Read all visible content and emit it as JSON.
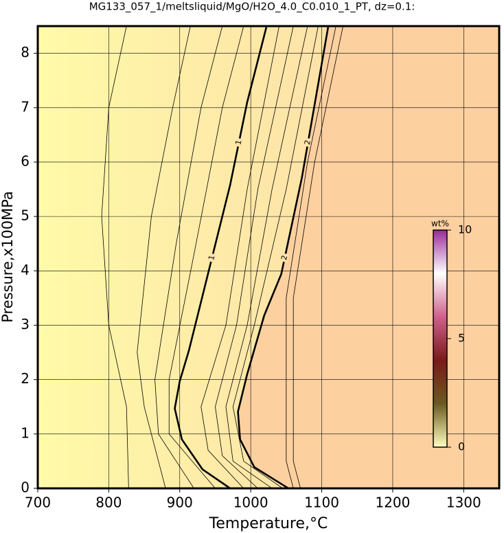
{
  "chart_data": {
    "type": "contour",
    "title": "MG133_057_1/meltsliquid/MgO/H2O_4.0_C0.010_1_PT, dz=0.1:",
    "x_label": "Temperature,°C",
    "y_label": "Pressure,x100MPa",
    "xlim": [
      700,
      1350
    ],
    "xticks": [
      700,
      800,
      900,
      1000,
      1100,
      1200,
      1300
    ],
    "ylim": [
      0,
      8.5
    ],
    "yticks": [
      0,
      1,
      2,
      3,
      4,
      5,
      6,
      7,
      8
    ],
    "grid": true,
    "contours": [
      {
        "level": 0.2,
        "x": [
          828,
          825,
          800,
          790,
          800,
          825
        ],
        "y": [
          0,
          1.5,
          3,
          5,
          7,
          8.5
        ]
      },
      {
        "level": 0.4,
        "x": [
          880,
          850,
          840,
          860,
          890,
          915
        ],
        "y": [
          0,
          1.5,
          2.5,
          5,
          7,
          8.5
        ]
      },
      {
        "level": 0.6,
        "x": [
          920,
          870,
          865,
          895,
          930,
          960
        ],
        "y": [
          0,
          1,
          2,
          4.5,
          7,
          8.5
        ]
      },
      {
        "level": 0.8,
        "x": [
          950,
          885,
          885,
          920,
          960,
          990
        ],
        "y": [
          0,
          1,
          2,
          4.3,
          7,
          8.5
        ]
      },
      {
        "level": 1,
        "labeled": true,
        "x": [
          971,
          932,
          903,
          893,
          900,
          913,
          942,
          971,
          995,
          1022
        ],
        "y": [
          0,
          0.35,
          0.9,
          1.47,
          1.97,
          2.54,
          4.06,
          5.58,
          7.1,
          8.48
        ]
      },
      {
        "level": 1.2,
        "x": [
          990,
          940,
          930,
          965,
          995,
          1040
        ],
        "y": [
          0,
          0.7,
          1.5,
          3,
          5.5,
          8.5
        ]
      },
      {
        "level": 1.4,
        "x": [
          1010,
          960,
          950,
          980,
          1010,
          1060
        ],
        "y": [
          0,
          0.6,
          1.5,
          3,
          5.5,
          8.5
        ]
      },
      {
        "level": 1.6,
        "x": [
          1030,
          975,
          965,
          995,
          1030,
          1080
        ],
        "y": [
          0,
          0.5,
          1.5,
          3,
          5.5,
          8.5
        ]
      },
      {
        "level": 1.8,
        "x": [
          1045,
          990,
          975,
          1005,
          1050,
          1095
        ],
        "y": [
          0,
          0.5,
          1.5,
          3,
          5.5,
          8.5
        ]
      },
      {
        "level": 2,
        "labeled": true,
        "x": [
          1053,
          1005,
          985,
          982,
          995,
          1019,
          1043,
          1072,
          1109
        ],
        "y": [
          0,
          0.39,
          0.9,
          1.41,
          2.1,
          3.18,
          3.94,
          5.71,
          8.48
        ]
      },
      {
        "level": 2.2,
        "x": [
          1060,
          1050,
          1050,
          1080,
          1120
        ],
        "y": [
          0,
          0.5,
          3.5,
          6,
          8.5
        ]
      },
      {
        "level": 2.4,
        "x": [
          1070,
          1060,
          1060,
          1090,
          1130
        ],
        "y": [
          0,
          0.5,
          3.5,
          6,
          8.5
        ]
      }
    ],
    "low_color": "#fffaa8",
    "mid_color": "#fde2a8",
    "high_color": "#fdd0a0",
    "colorbar": {
      "label": "wt%",
      "clim": [
        0,
        10
      ],
      "cticks": [
        0,
        5,
        10
      ],
      "colors": [
        "#ffffc0",
        "#6b5a20",
        "#7a1a1a",
        "#d0608a",
        "#ffffff",
        "#9a2a9a"
      ]
    }
  }
}
